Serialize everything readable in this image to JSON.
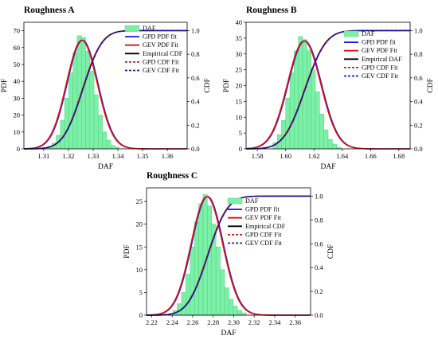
{
  "colors": {
    "bars": "#7cf0a6",
    "bar_edge": "#52cf82",
    "gpd_pdf": "#1a1ad8",
    "gev_pdf": "#e01010",
    "empirical": "#000000",
    "gpd_cdf": "#e01010",
    "gev_cdf": "#1a1ad8"
  },
  "chart_data": [
    {
      "type": "bar",
      "title": "Roughness A",
      "xlabel": "DAF",
      "ylabel": "PDF",
      "y2label": "CDF",
      "xlim": [
        1.302,
        1.368
      ],
      "ylim": [
        0,
        75
      ],
      "y2lim": [
        0,
        1.07
      ],
      "xticks": [
        "1.31",
        "1.32",
        "1.33",
        "1.34",
        "1.35",
        "1.36"
      ],
      "yticks": [
        "0",
        "10",
        "20",
        "30",
        "40",
        "50",
        "60",
        "70"
      ],
      "y2ticks": [
        "0.0",
        "0.2",
        "0.4",
        "0.6",
        "0.8",
        "1.0"
      ],
      "bin_width": 0.0017,
      "bin_centers": [
        1.3125,
        1.3142,
        1.3159,
        1.3176,
        1.3193,
        1.321,
        1.3227,
        1.3244,
        1.3261,
        1.3278,
        1.3295,
        1.3312,
        1.3329,
        1.3346,
        1.3363,
        1.338,
        1.3397
      ],
      "bar_values": [
        1.5,
        3.5,
        8,
        17,
        30,
        45,
        57,
        67,
        66,
        58,
        46,
        32,
        20,
        10,
        5,
        2,
        1
      ],
      "pdf_params": {
        "mu": 1.3257,
        "sigma": 0.0062
      },
      "legend": [
        "DAF",
        "GPD PDF fit",
        "GEV PDF Fit",
        "Empirical CDF",
        "GPD CDF Fit",
        "GEV CDF Fit"
      ],
      "legend_position": "top-right"
    },
    {
      "type": "bar",
      "title": "Roughness B",
      "xlabel": "DAF",
      "ylabel": "PDF",
      "y2label": "CDF",
      "xlim": [
        1.572,
        1.688
      ],
      "ylim": [
        0,
        40
      ],
      "y2lim": [
        0,
        1.07
      ],
      "xticks": [
        "1.58",
        "1.60",
        "1.62",
        "1.64",
        "1.66",
        "1.68"
      ],
      "yticks": [
        "0",
        "5",
        "10",
        "15",
        "20",
        "25",
        "30",
        "35",
        "40"
      ],
      "y2ticks": [
        "0.0",
        "0.2",
        "0.4",
        "0.6",
        "0.8",
        "1.0"
      ],
      "bin_width": 0.003,
      "bin_centers": [
        1.5925,
        1.5955,
        1.5985,
        1.6015,
        1.6045,
        1.6075,
        1.6105,
        1.6135,
        1.6165,
        1.6195,
        1.6225,
        1.6255,
        1.6285,
        1.6315,
        1.6345,
        1.6375
      ],
      "bar_values": [
        2,
        4.5,
        9,
        16,
        24,
        31,
        35.5,
        34.5,
        31,
        25,
        18,
        11,
        6,
        3,
        1.5,
        0.5
      ],
      "pdf_params": {
        "mu": 1.6135,
        "sigma": 0.0117
      },
      "legend": [
        "DAF",
        "GPD PDF fit",
        "GEV PDF Fit",
        "Empirical DAF",
        "GPD CDF Fit",
        "GEV CDF Fit"
      ],
      "legend_position": "top-right"
    },
    {
      "type": "bar",
      "title": "Roughness C",
      "xlabel": "DAF",
      "ylabel": "PDF",
      "y2label": "CDF",
      "xlim": [
        2.215,
        2.375
      ],
      "ylim": [
        0,
        28
      ],
      "y2lim": [
        0,
        1.07
      ],
      "xticks": [
        "2.22",
        "2.24",
        "2.26",
        "2.28",
        "2.30",
        "2.32",
        "2.34",
        "2.36"
      ],
      "yticks": [
        "0",
        "5",
        "10",
        "15",
        "20",
        "25"
      ],
      "y2ticks": [
        "0.0",
        "0.2",
        "0.4",
        "0.6",
        "0.8",
        "1.0"
      ],
      "bin_width": 0.0042,
      "bin_centers": [
        2.2428,
        2.247,
        2.2512,
        2.2554,
        2.2596,
        2.2638,
        2.268,
        2.2722,
        2.2764,
        2.2806,
        2.2848,
        2.289,
        2.2932,
        2.2974,
        2.3016,
        2.3058,
        2.31
      ],
      "bar_values": [
        1,
        2.5,
        5,
        9,
        15,
        20.5,
        24.5,
        26.5,
        24,
        20,
        15,
        10,
        6,
        3.5,
        2,
        1,
        0.5
      ],
      "pdf_params": {
        "mu": 2.2745,
        "sigma": 0.0153
      },
      "legend": [
        "DAF",
        "GPD PDF fit",
        "GEV PDF Fit",
        "Empirical CDF",
        "GPD CDF Fit",
        "GEV CDF Fit"
      ],
      "legend_position": "top-right"
    }
  ]
}
